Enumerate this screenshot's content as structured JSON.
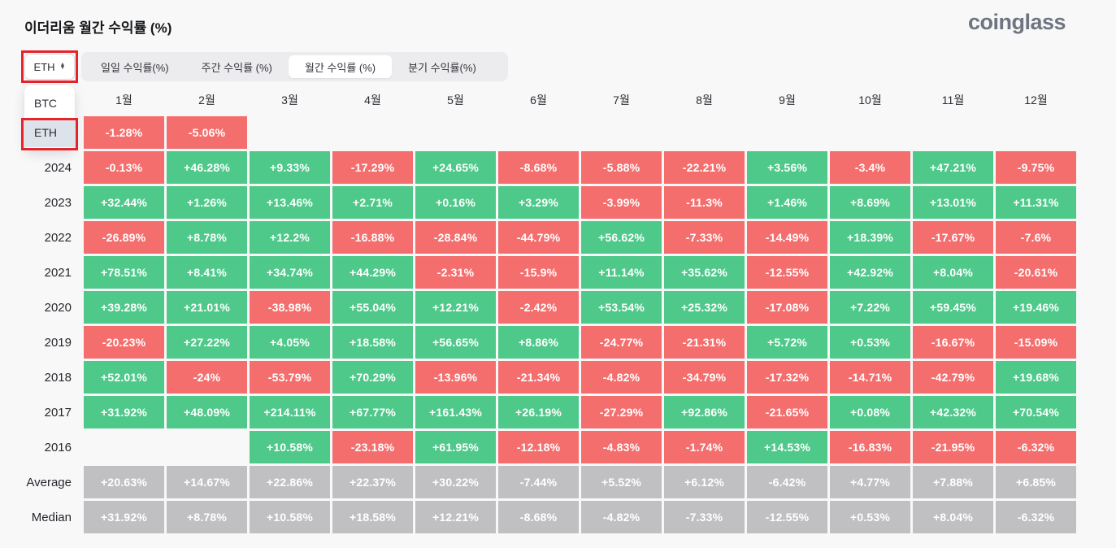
{
  "page": {
    "title": "이더리움 월간 수익률 (%)",
    "logo": "coinglass"
  },
  "controls": {
    "symbol_select": {
      "value": "ETH"
    },
    "dropdown": {
      "options": [
        "BTC",
        "ETH"
      ],
      "selected": "ETH"
    },
    "tabs": [
      {
        "label": "일일 수익률(%)",
        "active": false
      },
      {
        "label": "주간 수익률 (%)",
        "active": false
      },
      {
        "label": "월간 수익률 (%)",
        "active": true
      },
      {
        "label": "분기 수익률(%)",
        "active": false
      }
    ]
  },
  "chart_data": {
    "type": "table",
    "title": "이더리움 월간 수익률 (%)",
    "columns": [
      "1월",
      "2월",
      "3월",
      "4월",
      "5월",
      "6월",
      "7월",
      "8월",
      "9월",
      "10월",
      "11월",
      "12월"
    ],
    "rows": [
      {
        "label": "",
        "type": "year",
        "values": [
          "-1.28%",
          "-5.06%",
          "",
          "",
          "",
          "",
          "",
          "",
          "",
          "",
          "",
          ""
        ]
      },
      {
        "label": "2024",
        "type": "year",
        "values": [
          "-0.13%",
          "+46.28%",
          "+9.33%",
          "-17.29%",
          "+24.65%",
          "-8.68%",
          "-5.88%",
          "-22.21%",
          "+3.56%",
          "-3.4%",
          "+47.21%",
          "-9.75%"
        ]
      },
      {
        "label": "2023",
        "type": "year",
        "values": [
          "+32.44%",
          "+1.26%",
          "+13.46%",
          "+2.71%",
          "+0.16%",
          "+3.29%",
          "-3.99%",
          "-11.3%",
          "+1.46%",
          "+8.69%",
          "+13.01%",
          "+11.31%"
        ]
      },
      {
        "label": "2022",
        "type": "year",
        "values": [
          "-26.89%",
          "+8.78%",
          "+12.2%",
          "-16.88%",
          "-28.84%",
          "-44.79%",
          "+56.62%",
          "-7.33%",
          "-14.49%",
          "+18.39%",
          "-17.67%",
          "-7.6%"
        ]
      },
      {
        "label": "2021",
        "type": "year",
        "values": [
          "+78.51%",
          "+8.41%",
          "+34.74%",
          "+44.29%",
          "-2.31%",
          "-15.9%",
          "+11.14%",
          "+35.62%",
          "-12.55%",
          "+42.92%",
          "+8.04%",
          "-20.61%"
        ]
      },
      {
        "label": "2020",
        "type": "year",
        "values": [
          "+39.28%",
          "+21.01%",
          "-38.98%",
          "+55.04%",
          "+12.21%",
          "-2.42%",
          "+53.54%",
          "+25.32%",
          "-17.08%",
          "+7.22%",
          "+59.45%",
          "+19.46%"
        ]
      },
      {
        "label": "2019",
        "type": "year",
        "values": [
          "-20.23%",
          "+27.22%",
          "+4.05%",
          "+18.58%",
          "+56.65%",
          "+8.86%",
          "-24.77%",
          "-21.31%",
          "+5.72%",
          "+0.53%",
          "-16.67%",
          "-15.09%"
        ]
      },
      {
        "label": "2018",
        "type": "year",
        "values": [
          "+52.01%",
          "-24%",
          "-53.79%",
          "+70.29%",
          "-13.96%",
          "-21.34%",
          "-4.82%",
          "-34.79%",
          "-17.32%",
          "-14.71%",
          "-42.79%",
          "+19.68%"
        ]
      },
      {
        "label": "2017",
        "type": "year",
        "values": [
          "+31.92%",
          "+48.09%",
          "+214.11%",
          "+67.77%",
          "+161.43%",
          "+26.19%",
          "-27.29%",
          "+92.86%",
          "-21.65%",
          "+0.08%",
          "+42.32%",
          "+70.54%"
        ]
      },
      {
        "label": "2016",
        "type": "year",
        "values": [
          "",
          "",
          "+10.58%",
          "-23.18%",
          "+61.95%",
          "-12.18%",
          "-4.83%",
          "-1.74%",
          "+14.53%",
          "-16.83%",
          "-21.95%",
          "-6.32%"
        ]
      },
      {
        "label": "Average",
        "type": "summary",
        "values": [
          "+20.63%",
          "+14.67%",
          "+22.86%",
          "+22.37%",
          "+30.22%",
          "-7.44%",
          "+5.52%",
          "+6.12%",
          "-6.42%",
          "+4.77%",
          "+7.88%",
          "+6.85%"
        ]
      },
      {
        "label": "Median",
        "type": "summary",
        "values": [
          "+31.92%",
          "+8.78%",
          "+10.58%",
          "+18.58%",
          "+12.21%",
          "-8.68%",
          "-4.82%",
          "-7.33%",
          "-12.55%",
          "+0.53%",
          "+8.04%",
          "-6.32%"
        ]
      }
    ]
  },
  "colors": {
    "positive": "#4fc98a",
    "negative": "#f56e6e",
    "summary": "#c0c0c2",
    "annotation": "#e5232b",
    "background": "#f8f8f9"
  }
}
